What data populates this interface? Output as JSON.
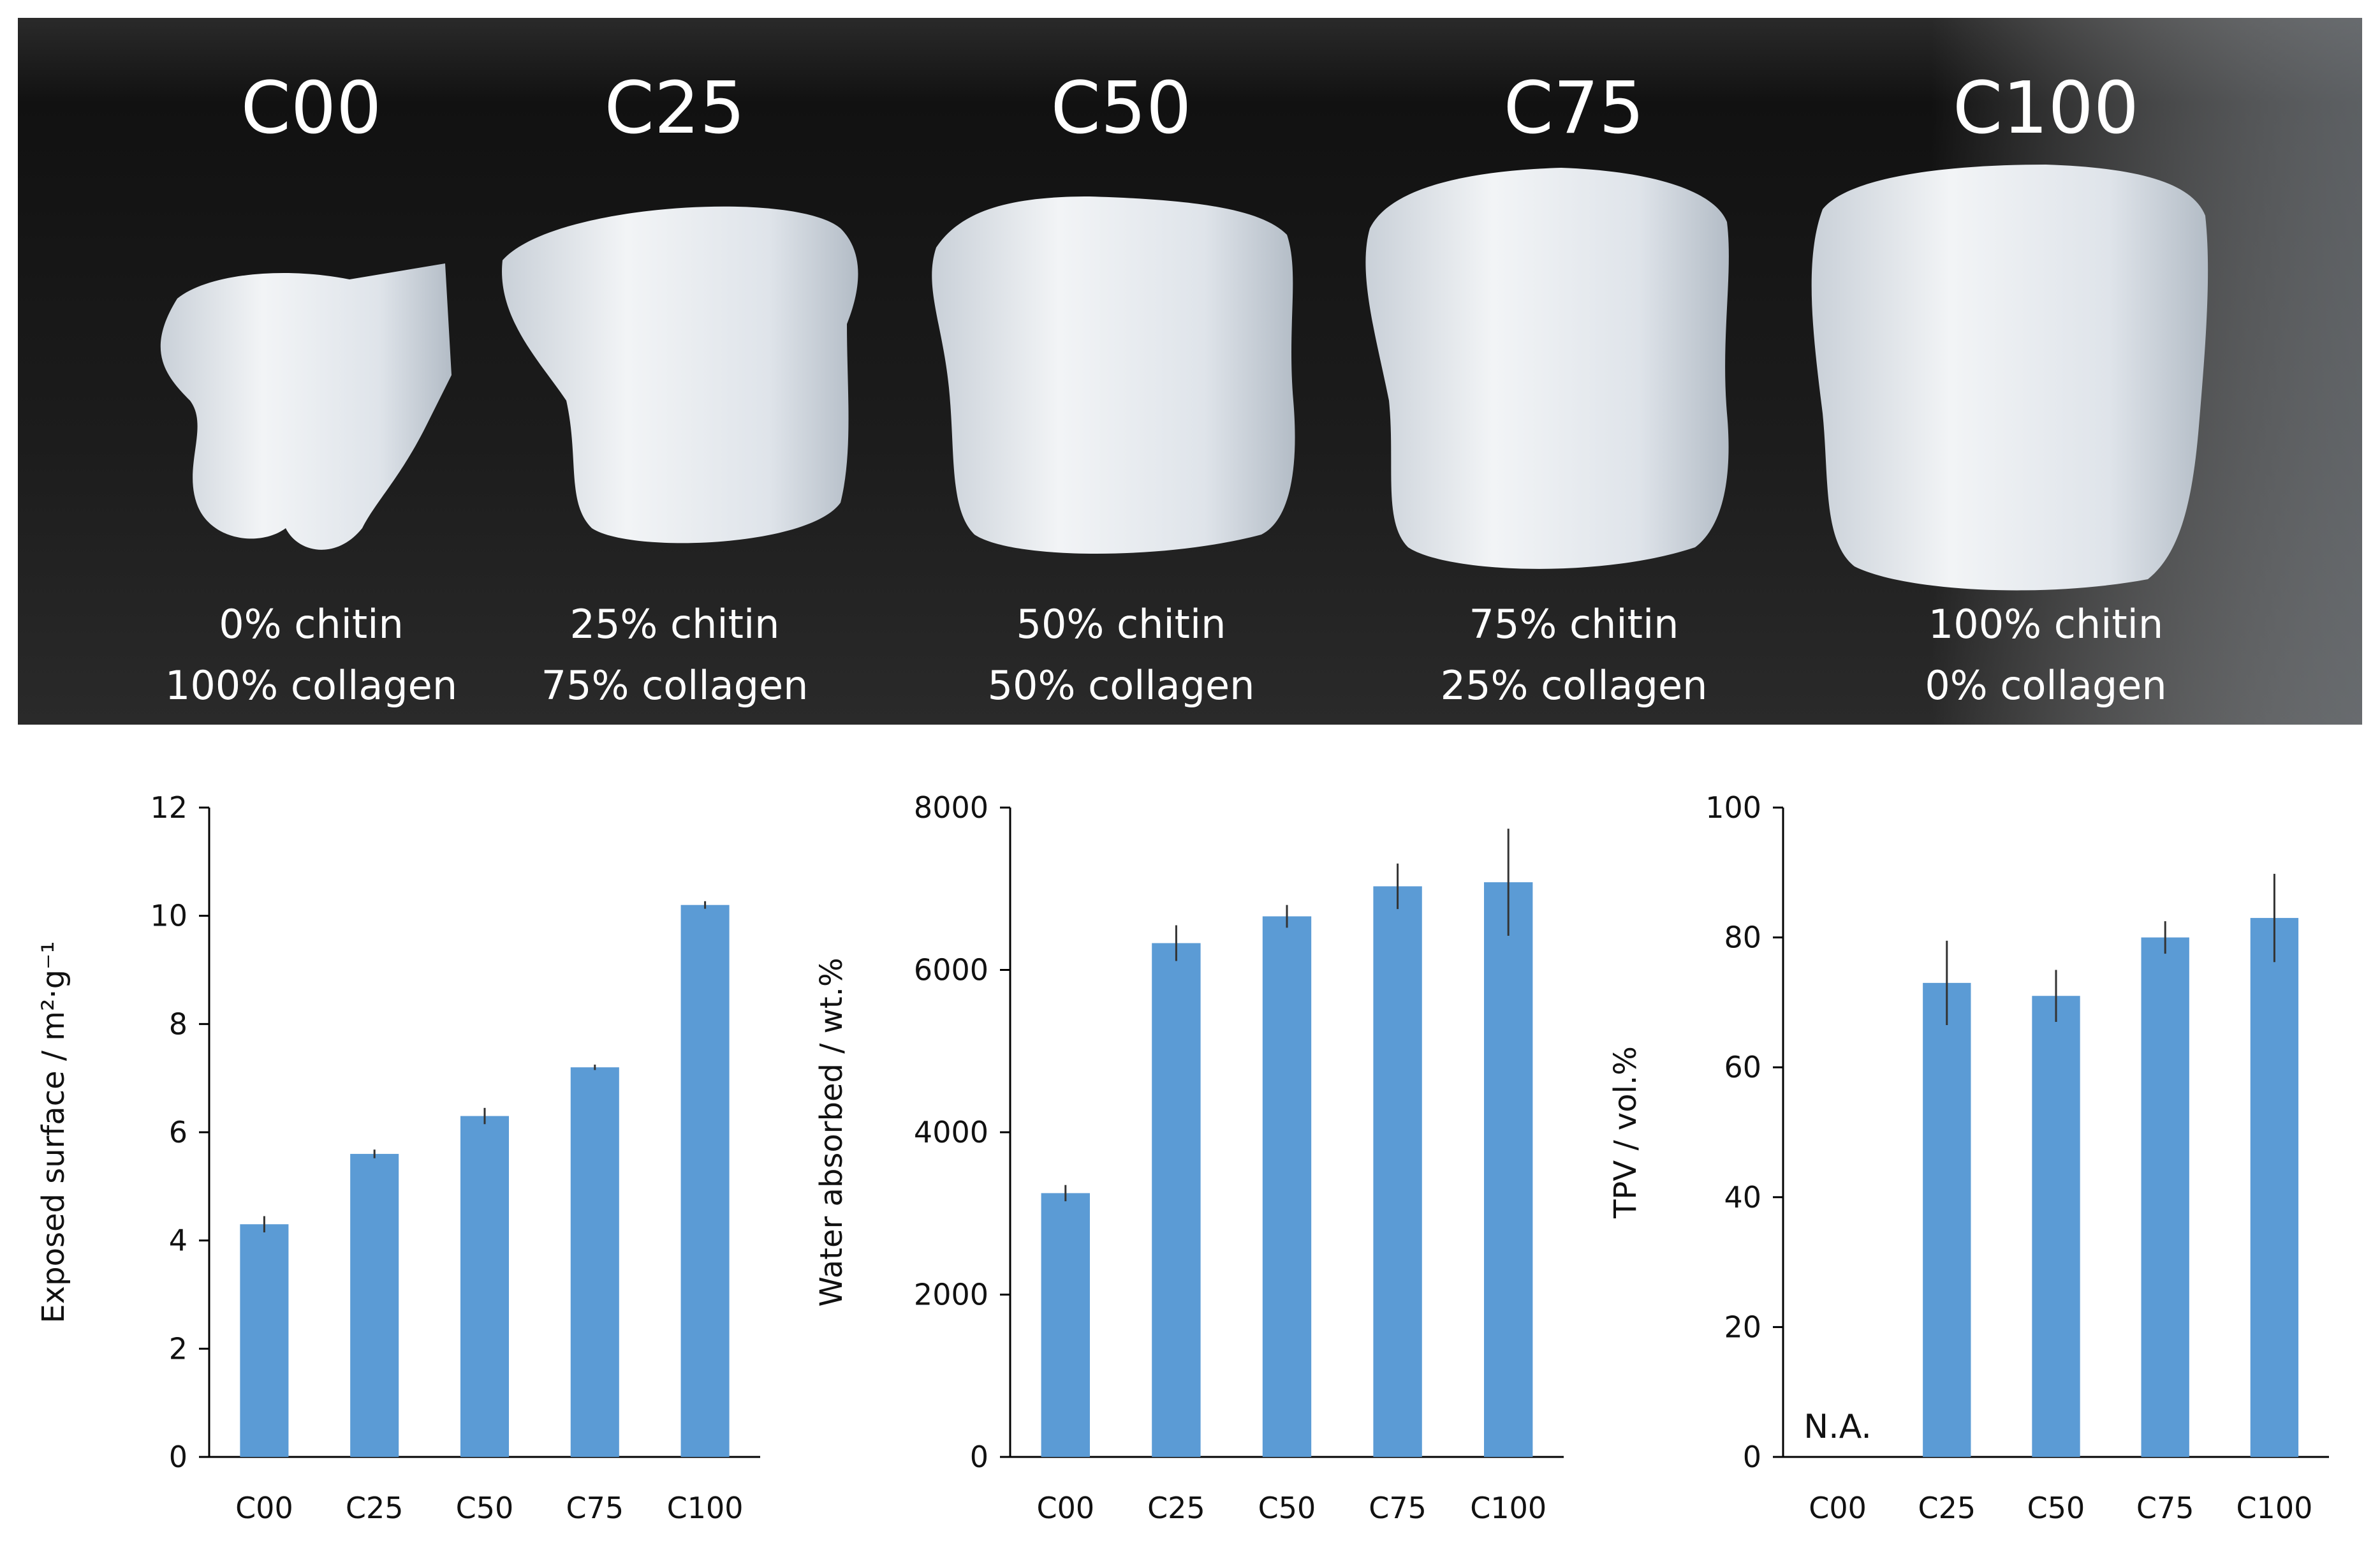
{
  "photo": {
    "samples": [
      {
        "code": "C00",
        "chitin_label": "0% chitin",
        "collagen_label": "100% collagen",
        "chitin_pct": 0,
        "collagen_pct": 100
      },
      {
        "code": "C25",
        "chitin_label": "25% chitin",
        "collagen_label": "75% collagen",
        "chitin_pct": 25,
        "collagen_pct": 75
      },
      {
        "code": "C50",
        "chitin_label": "50% chitin",
        "collagen_label": "50% collagen",
        "chitin_pct": 50,
        "collagen_pct": 50
      },
      {
        "code": "C75",
        "chitin_label": "75% chitin",
        "collagen_label": "25% collagen",
        "chitin_pct": 75,
        "collagen_pct": 25
      },
      {
        "code": "C100",
        "chitin_label": "100% chitin",
        "collagen_label": "0% collagen",
        "chitin_pct": 100,
        "collagen_pct": 0
      }
    ],
    "colors": {
      "background": "#1a1a1a",
      "sample": "#e8ecf0",
      "text": "#ffffff"
    }
  },
  "chart_data": [
    {
      "type": "bar",
      "categories": [
        "C00",
        "C25",
        "C50",
        "C75",
        "C100"
      ],
      "values": [
        4.3,
        5.6,
        6.3,
        7.2,
        10.2
      ],
      "errors": [
        0.15,
        0.08,
        0.15,
        0.05,
        0.07
      ],
      "ylabel": "Exposed surface / m²·g⁻¹",
      "ylim": [
        0,
        12
      ],
      "yticks": [
        0,
        2,
        4,
        6,
        8,
        10,
        12
      ],
      "bar_color": "#5b9bd5",
      "grid": false
    },
    {
      "type": "bar",
      "categories": [
        "C00",
        "C25",
        "C50",
        "C75",
        "C100"
      ],
      "values": [
        3250,
        6330,
        6660,
        7030,
        7080
      ],
      "errors": [
        100,
        220,
        140,
        280,
        660
      ],
      "ylabel": "Water absorbed / wt.%",
      "ylim": [
        0,
        8000
      ],
      "yticks": [
        0,
        2000,
        4000,
        6000,
        8000
      ],
      "bar_color": "#5b9bd5",
      "grid": false
    },
    {
      "type": "bar",
      "categories": [
        "C00",
        "C25",
        "C50",
        "C75",
        "C100"
      ],
      "values": [
        null,
        73,
        71,
        80,
        83
      ],
      "errors": [
        null,
        6.5,
        4,
        2.5,
        6.8
      ],
      "ylabel": "TPV / vol.%",
      "ylim": [
        0,
        100
      ],
      "yticks": [
        0,
        20,
        40,
        60,
        80,
        100
      ],
      "annotation": "N.A.",
      "bar_color": "#5b9bd5",
      "grid": false
    }
  ]
}
